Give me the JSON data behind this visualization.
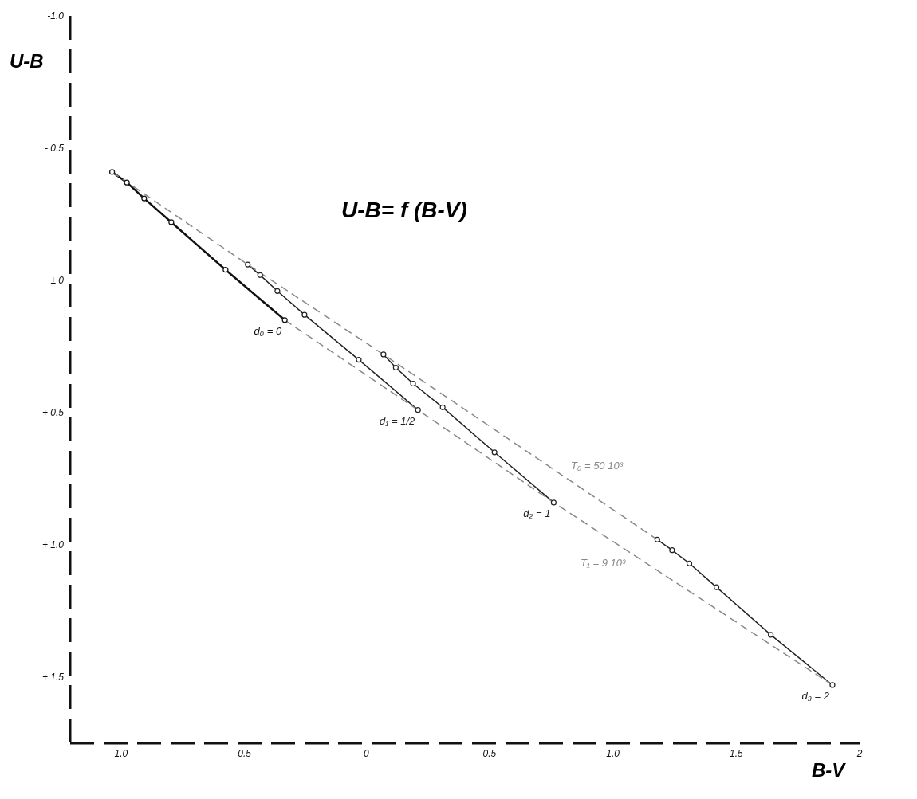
{
  "chart_data": {
    "type": "line",
    "title": "U-B= f (B-V)",
    "xlabel": "B-V",
    "ylabel": "U-B",
    "xlim": [
      -1.2,
      2.0
    ],
    "xticks": [
      {
        "value": -1.0,
        "label": "-1.0"
      },
      -0.5,
      0,
      0.5,
      {
        "value": 1.0,
        "label": "1.0"
      },
      1.5,
      2
    ],
    "ylim": [
      1.75,
      -1.0
    ],
    "yticks": [
      {
        "value": -1.0,
        "label": "-1.0"
      },
      {
        "value": -0.5,
        "label": "- 0.5"
      },
      {
        "value": 0,
        "label": "± 0"
      },
      {
        "value": 0.5,
        "label": "+ 0.5"
      },
      {
        "value": 1.0,
        "label": "+ 1.0"
      },
      {
        "value": 1.5,
        "label": "+ 1.5"
      }
    ],
    "grid": false,
    "legend": false,
    "marker": "circle",
    "series": [
      {
        "name": "d₀ = 0",
        "color": "#111111",
        "x": [
          -1.03,
          -0.97,
          -0.9,
          -0.79,
          -0.57,
          -0.33
        ],
        "values": [
          -0.41,
          -0.37,
          -0.31,
          -0.22,
          -0.04,
          0.15
        ]
      },
      {
        "name": "d₁ = 1/2",
        "color": "#222222",
        "x": [
          -0.48,
          -0.43,
          -0.36,
          -0.25,
          -0.03,
          0.21
        ],
        "values": [
          -0.06,
          -0.02,
          0.04,
          0.13,
          0.3,
          0.49
        ]
      },
      {
        "name": "d₂ = 1",
        "color": "#222222",
        "x": [
          0.07,
          0.12,
          0.19,
          0.31,
          0.52,
          0.76
        ],
        "values": [
          0.28,
          0.33,
          0.39,
          0.48,
          0.65,
          0.84
        ]
      },
      {
        "name": "d₃ = 2",
        "color": "#222222",
        "x": [
          1.18,
          1.24,
          1.31,
          1.42,
          1.64,
          1.89
        ],
        "values": [
          0.98,
          1.02,
          1.07,
          1.16,
          1.34,
          1.53
        ]
      },
      {
        "name": "T₀ = 50 10³",
        "color": "#888888",
        "line_style": "dashed",
        "marker": "none",
        "x": [
          -1.03,
          -0.48,
          0.07,
          1.18
        ],
        "values": [
          -0.41,
          -0.06,
          0.28,
          0.98
        ]
      },
      {
        "name": "T₁ = 9 10³",
        "color": "#888888",
        "line_style": "dashed",
        "marker": "none",
        "x": [
          -0.33,
          0.21,
          0.76,
          1.89
        ],
        "values": [
          0.15,
          0.49,
          0.84,
          1.53
        ]
      }
    ]
  }
}
